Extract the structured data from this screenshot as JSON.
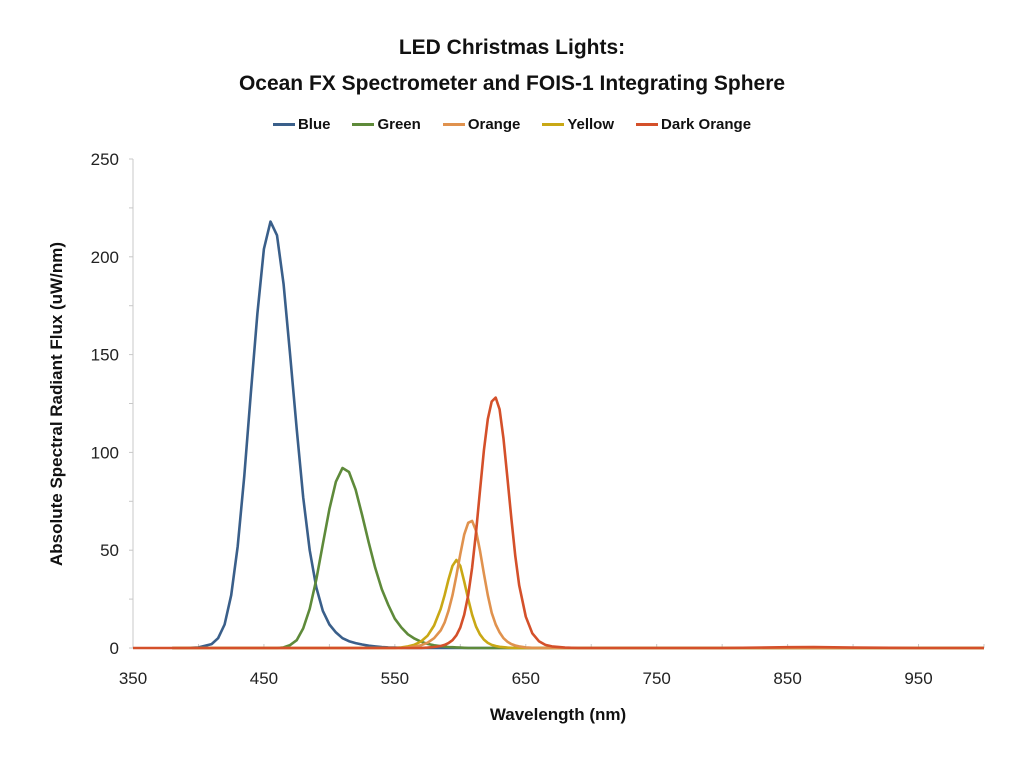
{
  "chart_data": {
    "type": "line",
    "title": "LED Christmas Lights:",
    "subtitle": "Ocean FX Spectrometer and FOIS-1 Integrating Sphere",
    "xlabel": "Wavelength (nm)",
    "ylabel": "Absolute Spectral Radiant Flux (uW/nm)",
    "xlim": [
      350,
      1000
    ],
    "ylim": [
      0,
      250
    ],
    "x_ticks": [
      350,
      450,
      550,
      650,
      750,
      850,
      950
    ],
    "x_tick_labels": [
      "350",
      "450",
      "550",
      "650",
      "750",
      "850",
      "950"
    ],
    "y_ticks": [
      0,
      50,
      100,
      150,
      200,
      250
    ],
    "y_tick_labels": [
      "0",
      "50",
      "100",
      "150",
      "200",
      "250"
    ],
    "legend_position": "top",
    "grid": false,
    "x": [
      380,
      390,
      400,
      410,
      415,
      420,
      425,
      430,
      435,
      440,
      445,
      450,
      455,
      460,
      465,
      470,
      475,
      480,
      485,
      490,
      495,
      500,
      505,
      510,
      515,
      520,
      525,
      530,
      535,
      540,
      545,
      550,
      555,
      560,
      565,
      570,
      575,
      580,
      585,
      588,
      591,
      594,
      597,
      600,
      603,
      606,
      609,
      612,
      615,
      618,
      621,
      624,
      627,
      630,
      633,
      636,
      639,
      642,
      645,
      650,
      655,
      660,
      665,
      670,
      680,
      690,
      700,
      720,
      750,
      800,
      850,
      870,
      900,
      950,
      1000
    ],
    "series": [
      {
        "name": "Blue",
        "color": "#3a5f8a",
        "values": [
          0,
          0,
          0.3,
          2,
          5,
          12,
          27,
          52,
          88,
          130,
          171,
          204,
          218,
          211,
          186,
          150,
          112,
          77,
          50,
          31,
          19,
          12,
          8,
          5,
          3.5,
          2.5,
          1.8,
          1.2,
          0.8,
          0.5,
          0.3,
          0.2,
          0.1,
          0,
          0,
          0,
          0,
          0,
          0,
          0,
          0,
          0,
          0,
          0,
          0,
          0,
          0,
          0,
          0,
          0,
          0,
          0,
          0,
          0,
          0,
          0,
          0,
          0,
          0,
          0,
          0,
          0,
          0,
          0,
          0,
          0,
          0,
          0,
          0,
          0,
          0,
          0,
          0,
          0,
          0
        ]
      },
      {
        "name": "Green",
        "color": "#5e8a3a",
        "values": [
          0,
          0,
          0,
          0,
          0,
          0,
          0,
          0,
          0,
          0,
          0,
          0,
          0,
          0,
          0.3,
          1.5,
          4,
          10,
          20,
          35,
          53,
          71,
          85,
          92,
          90,
          81,
          68,
          54,
          41,
          30,
          22,
          15,
          10.5,
          7,
          4.8,
          3.2,
          2.1,
          1.4,
          0.9,
          0.7,
          0.5,
          0.4,
          0.3,
          0.2,
          0.1,
          0,
          0,
          0,
          0,
          0,
          0,
          0,
          0,
          0,
          0,
          0,
          0,
          0,
          0,
          0,
          0,
          0,
          0,
          0,
          0,
          0,
          0,
          0,
          0,
          0,
          0,
          0,
          0,
          0,
          0
        ]
      },
      {
        "name": "Orange",
        "color": "#e0924e",
        "values": [
          0,
          0,
          0,
          0,
          0,
          0,
          0,
          0,
          0,
          0,
          0,
          0,
          0,
          0,
          0,
          0,
          0,
          0,
          0,
          0,
          0,
          0,
          0,
          0,
          0,
          0,
          0,
          0,
          0,
          0,
          0,
          0,
          0,
          0.3,
          0.7,
          1.4,
          2.7,
          5,
          9,
          13,
          19,
          27,
          37,
          48,
          58,
          64,
          65,
          60,
          50,
          38,
          27,
          18,
          12,
          8,
          5,
          3.2,
          2,
          1.3,
          0.8,
          0.3,
          0.1,
          0,
          0,
          0,
          0,
          0,
          0,
          0,
          0,
          0,
          0,
          0,
          0,
          0,
          0
        ]
      },
      {
        "name": "Yellow",
        "color": "#c9a815",
        "values": [
          0,
          0,
          0,
          0,
          0,
          0,
          0,
          0,
          0,
          0,
          0,
          0,
          0,
          0,
          0,
          0,
          0,
          0,
          0,
          0,
          0,
          0,
          0,
          0,
          0,
          0,
          0,
          0,
          0,
          0,
          0,
          0,
          0.3,
          0.8,
          1.7,
          3.3,
          6.3,
          11.5,
          20,
          27,
          35,
          42,
          45,
          42,
          34,
          25,
          17,
          11,
          7,
          4.3,
          2.6,
          1.6,
          1,
          0.6,
          0.4,
          0.2,
          0.1,
          0,
          0,
          0,
          0,
          0,
          0,
          0,
          0,
          0,
          0,
          0,
          0,
          0,
          0,
          0,
          0,
          0,
          0
        ]
      },
      {
        "name": "Dark Orange",
        "color": "#d4502a",
        "values": [
          0,
          0,
          0,
          0,
          0,
          0,
          0,
          0,
          0,
          0,
          0,
          0,
          0,
          0,
          0,
          0,
          0,
          0,
          0,
          0,
          0,
          0,
          0,
          0,
          0,
          0,
          0,
          0,
          0,
          0,
          0,
          0,
          0,
          0,
          0,
          0,
          0.2,
          0.5,
          1,
          1.6,
          2.5,
          4,
          6.5,
          10.5,
          17,
          27,
          41,
          59,
          80,
          101,
          117,
          126,
          128,
          122,
          107,
          87,
          66,
          47,
          32,
          16,
          7.5,
          3.5,
          1.6,
          0.8,
          0.2,
          0,
          0,
          0,
          0,
          0,
          0.4,
          0.5,
          0.2,
          0,
          0
        ]
      }
    ]
  }
}
